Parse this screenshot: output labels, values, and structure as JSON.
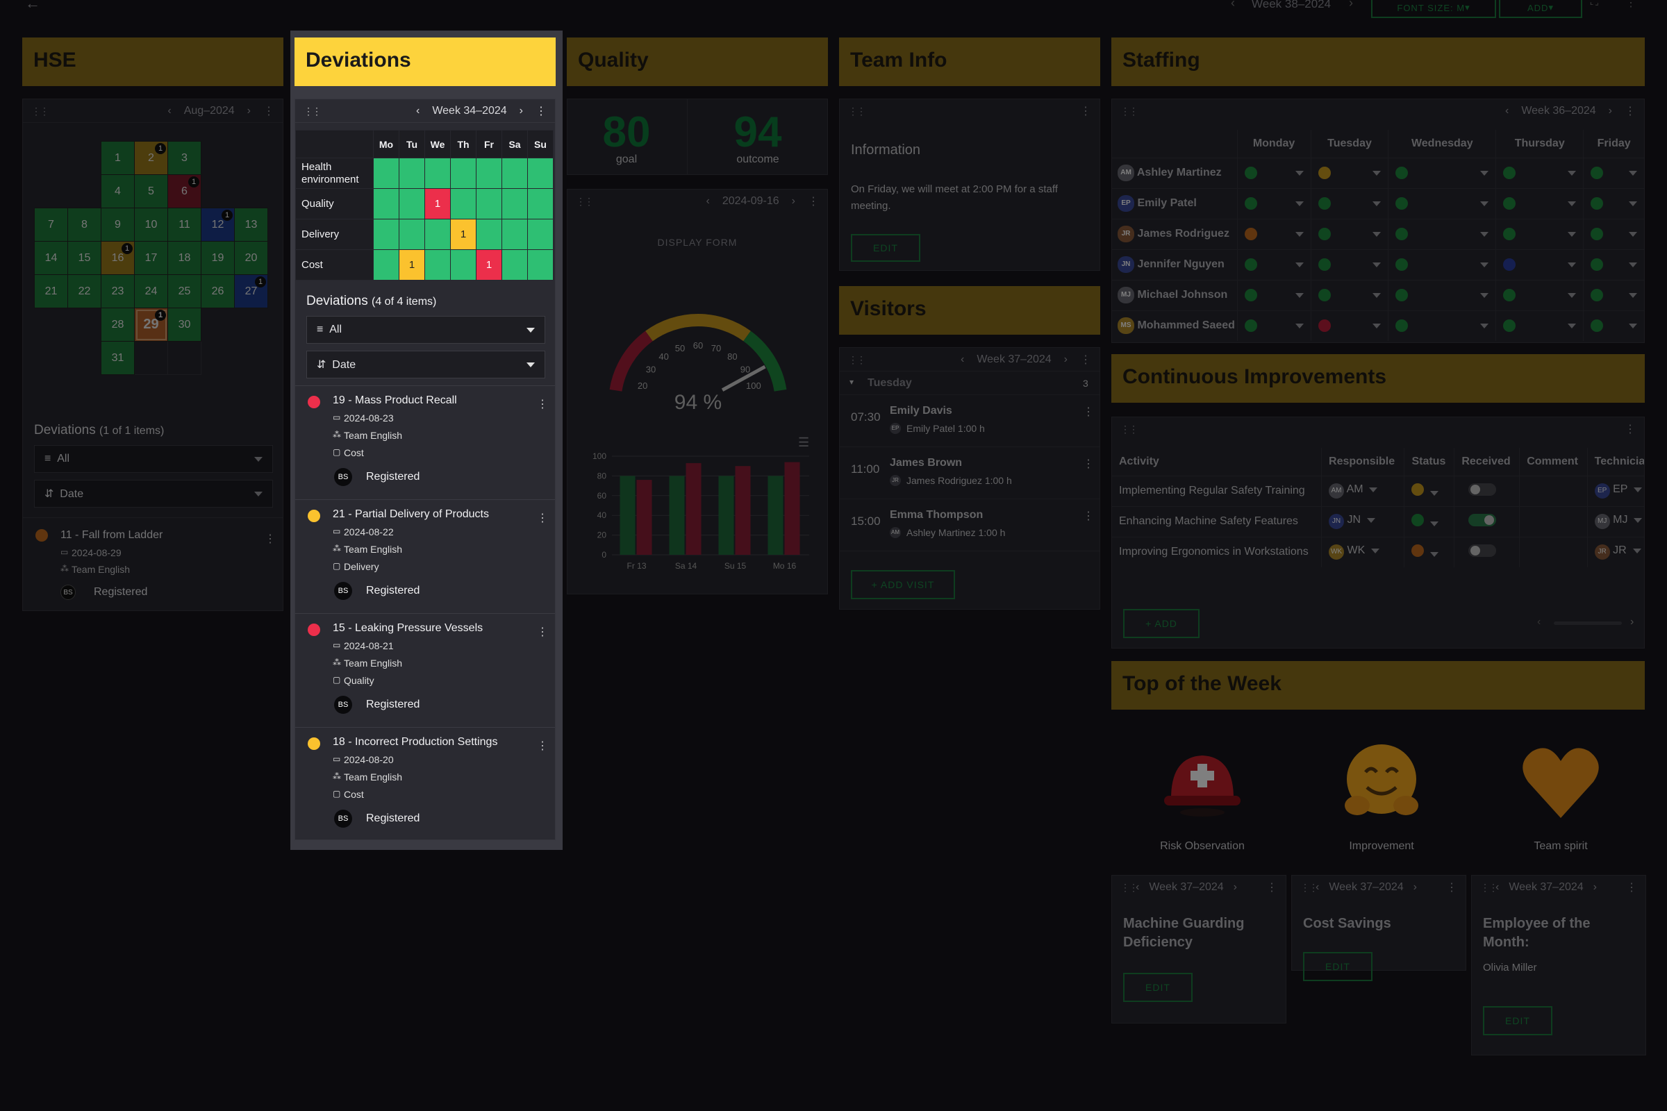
{
  "topbar": {
    "week": "Week 38–2024",
    "font_size_btn": "FONT SIZE: M",
    "add_btn": "ADD"
  },
  "hse": {
    "title": "HSE",
    "month": "Aug–2024",
    "calendar_rows": [
      [
        null,
        null,
        "1",
        "2",
        "3",
        null,
        null
      ],
      [
        null,
        null,
        "4",
        "5",
        "6",
        null,
        null
      ],
      [
        "7",
        "8",
        "9",
        "10",
        "11",
        "12",
        "13"
      ],
      [
        "14",
        "15",
        "16",
        "17",
        "18",
        "19",
        "20"
      ],
      [
        "21",
        "22",
        "23",
        "24",
        "25",
        "26",
        "27"
      ],
      [
        null,
        null,
        "28",
        "29",
        "30",
        null,
        null
      ],
      [
        null,
        null,
        "31",
        null,
        null,
        null,
        null
      ]
    ],
    "deviations_label": "Deviations",
    "deviations_count": "(1 of 1 items)",
    "filter": "All",
    "sort": "Date",
    "item": {
      "title": "11 - Fall from Ladder",
      "date": "2024-08-29",
      "team": "Team English",
      "status": "Registered",
      "initials": "BS"
    }
  },
  "deviations": {
    "title": "Deviations",
    "week": "Week 34–2024",
    "days": [
      "Mo",
      "Tu",
      "We",
      "Th",
      "Fr",
      "Sa",
      "Su"
    ],
    "rows": [
      {
        "label": "Health environment",
        "cells": [
          "",
          "",
          "",
          "",
          "",
          "",
          ""
        ]
      },
      {
        "label": "Quality",
        "cells": [
          "",
          "",
          "1",
          "",
          "",
          "",
          ""
        ]
      },
      {
        "label": "Delivery",
        "cells": [
          "",
          "",
          "",
          "1",
          "",
          "",
          ""
        ]
      },
      {
        "label": "Cost",
        "cells": [
          "",
          "1",
          "",
          "",
          "1",
          "",
          ""
        ]
      }
    ],
    "list_label": "Deviations",
    "list_count": "(4 of 4 items)",
    "filter": "All",
    "sort": "Date",
    "items": [
      {
        "title": "19 - Mass Product Recall",
        "date": "2024-08-23",
        "team": "Team English",
        "category": "Cost",
        "status": "Registered",
        "initials": "BS",
        "color": "#ec2f4b"
      },
      {
        "title": "21 - Partial Delivery of Products",
        "date": "2024-08-22",
        "team": "Team English",
        "category": "Delivery",
        "status": "Registered",
        "initials": "BS",
        "color": "#fbc22e"
      },
      {
        "title": "15 - Leaking Pressure Vessels",
        "date": "2024-08-21",
        "team": "Team English",
        "category": "Quality",
        "status": "Registered",
        "initials": "BS",
        "color": "#ec2f4b"
      },
      {
        "title": "18 - Incorrect Production Settings",
        "date": "2024-08-20",
        "team": "Team English",
        "category": "Cost",
        "status": "Registered",
        "initials": "BS",
        "color": "#fbc22e"
      }
    ]
  },
  "quality": {
    "title": "Quality",
    "goal_value": "80",
    "goal_label": "goal",
    "outcome_value": "94",
    "outcome_label": "outcome",
    "date": "2024-09-16",
    "display_form": "DISPLAY FORM",
    "gauge": {
      "value_text": "94 %",
      "value": 94,
      "ticks": [
        "20",
        "30",
        "40",
        "50",
        "60",
        "70",
        "80",
        "90",
        "100"
      ]
    }
  },
  "chart_data": {
    "type": "bar",
    "categories": [
      "Fr 13",
      "Sa 14",
      "Su 15",
      "Mo 16"
    ],
    "ylim": [
      0,
      100
    ],
    "yticks": [
      "0",
      "20",
      "40",
      "60",
      "80",
      "100"
    ],
    "series": [
      {
        "values": [
          80,
          80,
          80,
          80
        ]
      },
      {
        "values": [
          76,
          93,
          90,
          94
        ]
      }
    ]
  },
  "team_info": {
    "title": "Team Info",
    "heading": "Information",
    "text": "On Friday, we will meet at 2:00 PM for a staff meeting.",
    "edit": "EDIT"
  },
  "visitors": {
    "title": "Visitors",
    "week": "Week 37–2024",
    "day": "Tuesday",
    "day_count": "3",
    "items": [
      {
        "time": "07:30",
        "name": "Emily Davis",
        "host_initials": "EP",
        "host": "Emily Patel 1:00 h"
      },
      {
        "time": "11:00",
        "name": "James Brown",
        "host_initials": "JR",
        "host": "James Rodriguez 1:00 h"
      },
      {
        "time": "15:00",
        "name": "Emma Thompson",
        "host_initials": "AM",
        "host": "Ashley Martinez 1:00 h"
      }
    ],
    "add": "+ ADD VISIT"
  },
  "staffing": {
    "title": "Staffing",
    "week": "Week 36–2024",
    "days": [
      "Monday",
      "Tuesday",
      "Wednesday",
      "Thursday",
      "Friday"
    ],
    "people": [
      {
        "initials": "AM",
        "name": "Ashley Martinez",
        "av": "#6a6a74",
        "status": [
          "#1f8a3e",
          "#c99a1e",
          "#1f8a3e",
          "#1f8a3e",
          "#1f8a3e"
        ]
      },
      {
        "initials": "EP",
        "name": "Emily Patel",
        "av": "#3a4a9a",
        "status": [
          "#1f8a3e",
          "#1f8a3e",
          "#1f8a3e",
          "#1f8a3e",
          "#1f8a3e"
        ]
      },
      {
        "initials": "JR",
        "name": "James Rodriguez",
        "av": "#8a5a3a",
        "status": [
          "#c06a1e",
          "#1f8a3e",
          "#1f8a3e",
          "#1f8a3e",
          "#1f8a3e"
        ]
      },
      {
        "initials": "JN",
        "name": "Jennifer Nguyen",
        "av": "#3a4a9a",
        "status": [
          "#1f8a3e",
          "#1f8a3e",
          "#1f8a3e",
          "#2a3ea0",
          "#1f8a3e"
        ]
      },
      {
        "initials": "MJ",
        "name": "Michael Johnson",
        "av": "#6a6a74",
        "status": [
          "#1f8a3e",
          "#1f8a3e",
          "#1f8a3e",
          "#1f8a3e",
          "#1f8a3e"
        ]
      },
      {
        "initials": "MS",
        "name": "Mohammed Saeed",
        "av": "#b08a2a",
        "status": [
          "#1f8a3e",
          "#b81e3a",
          "#1f8a3e",
          "#1f8a3e",
          "#1f8a3e"
        ]
      }
    ]
  },
  "ci": {
    "title": "Continuous Improvements",
    "cols": [
      "Activity",
      "Responsible",
      "Status",
      "Received",
      "Comment",
      "Technician"
    ],
    "rows": [
      {
        "activity": "Implementing Regular Safety Training",
        "resp": "AM",
        "resp_av": "#6a6a74",
        "status": "#c99a1e",
        "received": false,
        "tech": "EP",
        "tech_av": "#3a4a9a"
      },
      {
        "activity": "Enhancing Machine Safety Features",
        "resp": "JN",
        "resp_av": "#3a4a9a",
        "status": "#1f8a3e",
        "received": true,
        "tech": "MJ",
        "tech_av": "#6a6a74"
      },
      {
        "activity": "Improving Ergonomics in Workstations",
        "resp": "WK",
        "resp_av": "#b08a2a",
        "status": "#c06a1e",
        "received": false,
        "tech": "JR",
        "tech_av": "#8a5a3a"
      }
    ],
    "add": "+ ADD"
  },
  "top": {
    "title": "Top of the Week",
    "awards": [
      {
        "label": "Risk Observation",
        "icon": "helmet"
      },
      {
        "label": "Improvement",
        "icon": "hug"
      },
      {
        "label": "Team spirit",
        "icon": "heart"
      }
    ],
    "cards": [
      {
        "week": "Week 37–2024",
        "title": "Machine Guarding Deficiency",
        "sub": "",
        "edit": "EDIT"
      },
      {
        "week": "Week 37–2024",
        "title": "Cost Savings",
        "sub": "",
        "edit": "EDIT"
      },
      {
        "week": "Week 37–2024",
        "title": "Employee of the Month:",
        "sub": "Olivia Miller",
        "edit": "EDIT"
      }
    ]
  }
}
